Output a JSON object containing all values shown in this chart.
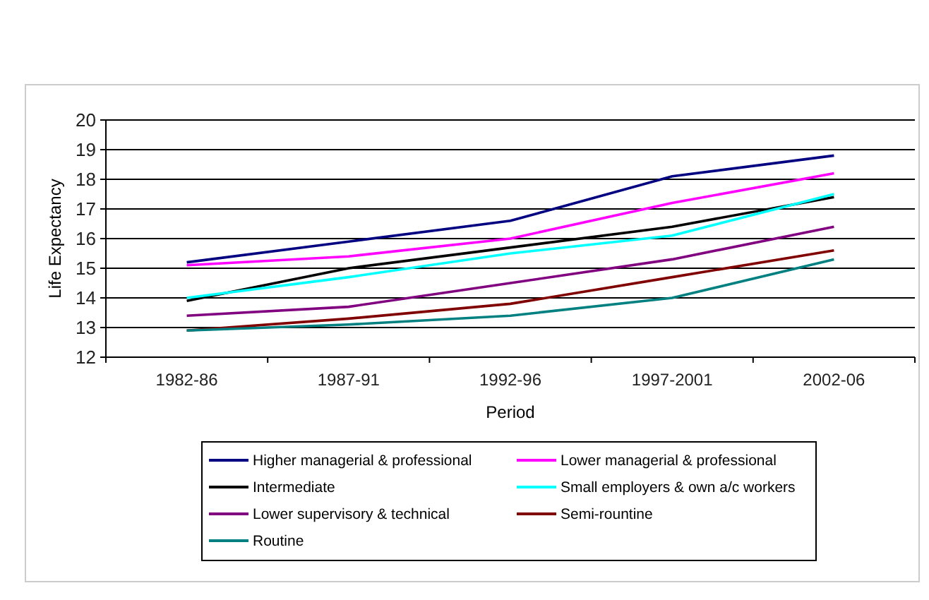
{
  "chart_data": {
    "type": "line",
    "xlabel": "Period",
    "ylabel": "Life Expectancy",
    "categories": [
      "1982-86",
      "1987-91",
      "1992-96",
      "1997-2001",
      "2002-06"
    ],
    "ylim": [
      12,
      20
    ],
    "yticks": [
      12,
      13,
      14,
      15,
      16,
      17,
      18,
      19,
      20
    ],
    "grid": "y",
    "legend": "bottom",
    "marker": "none",
    "series": [
      {
        "name": "Higher managerial & professional",
        "color": "#000080",
        "values": [
          15.2,
          15.9,
          16.6,
          18.1,
          18.8
        ]
      },
      {
        "name": "Lower managerial & professional",
        "color": "#ff00ff",
        "values": [
          15.1,
          15.4,
          16.0,
          17.2,
          18.2
        ]
      },
      {
        "name": "Intermediate",
        "color": "#000000",
        "values": [
          13.9,
          15.0,
          15.7,
          16.4,
          17.4
        ]
      },
      {
        "name": "Small employers & own a/c workers",
        "color": "#00ffff",
        "values": [
          14.0,
          14.7,
          15.5,
          16.1,
          17.5
        ]
      },
      {
        "name": "Lower supervisory & technical",
        "color": "#800080",
        "values": [
          13.4,
          13.7,
          14.5,
          15.3,
          16.4
        ]
      },
      {
        "name": "Semi-rountine",
        "color": "#800000",
        "values": [
          12.9,
          13.3,
          13.8,
          14.7,
          15.6
        ]
      },
      {
        "name": "Routine",
        "color": "#008080",
        "values": [
          12.9,
          13.1,
          13.4,
          14.0,
          15.3
        ]
      }
    ]
  }
}
